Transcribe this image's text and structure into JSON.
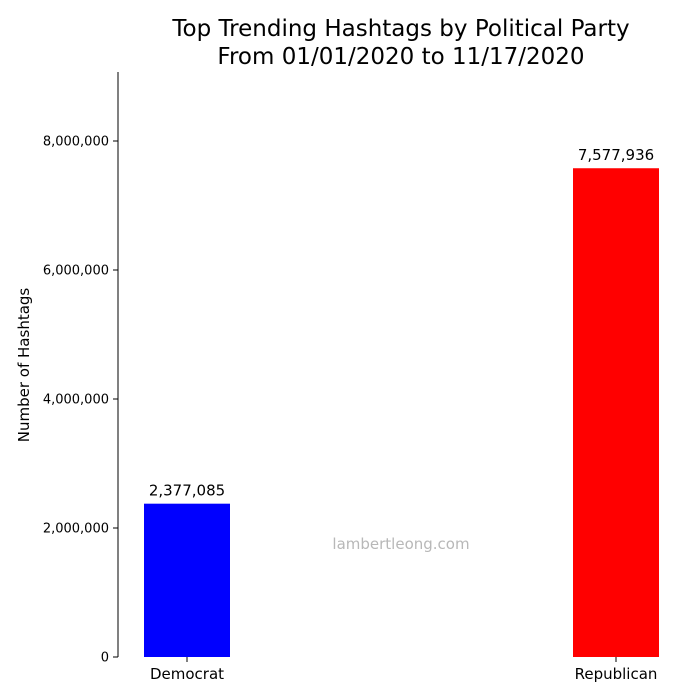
{
  "chart_data": {
    "type": "bar",
    "title": [
      "Top Trending Hashtags by Political Party",
      "From 01/01/2020 to 11/17/2020"
    ],
    "ylabel": "Number of Hashtags",
    "xlabel": "",
    "categories": [
      "Democrat",
      "Republican"
    ],
    "values": [
      2377085,
      7577936
    ],
    "data_labels": [
      "2,377,085",
      "7,577,936"
    ],
    "colors": [
      "#0000ff",
      "#ff0000"
    ],
    "ylim": [
      0,
      9070000
    ],
    "yticks": [
      0,
      2000000,
      4000000,
      6000000,
      8000000
    ],
    "ytick_labels": [
      "0",
      "2,000,000",
      "4,000,000",
      "6,000,000",
      "8,000,000"
    ],
    "grid": false,
    "watermark": "lambertleong.com"
  }
}
